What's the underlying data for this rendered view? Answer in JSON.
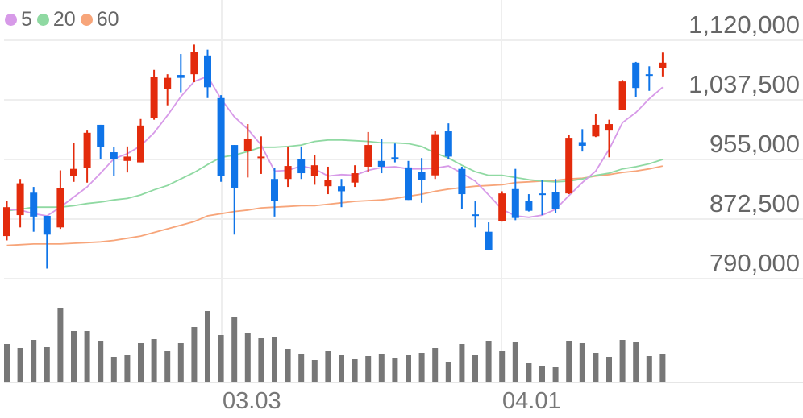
{
  "chart_data": {
    "type": "candlestick",
    "legend": {
      "items": [
        {
          "label": "5",
          "color": "#d79ae8"
        },
        {
          "label": "20",
          "color": "#8fd9a2"
        },
        {
          "label": "60",
          "color": "#f7a57a"
        }
      ],
      "placement": "top-left"
    },
    "y_ticks": [
      "1,120,000",
      "1,037,500",
      "955,000",
      "872,500",
      "790,000"
    ],
    "ylim": [
      790000,
      1120000
    ],
    "x_ticks": [
      {
        "label": "03.03",
        "index": 16
      },
      {
        "label": "04.01",
        "index": 37
      }
    ],
    "grid": true,
    "colors": {
      "up": "#e32b0c",
      "down": "#0f74e8",
      "volume": "#777777",
      "grid": "#eeeeee"
    },
    "candles": [
      {
        "o": 849000,
        "h": 898000,
        "l": 843000,
        "c": 889000
      },
      {
        "o": 878000,
        "h": 928000,
        "l": 861000,
        "c": 922000
      },
      {
        "o": 909000,
        "h": 917000,
        "l": 855000,
        "c": 876000
      },
      {
        "o": 877000,
        "h": 877000,
        "l": 804000,
        "c": 851000
      },
      {
        "o": 861000,
        "h": 940000,
        "l": 859000,
        "c": 915000
      },
      {
        "o": 932000,
        "h": 978000,
        "l": 924000,
        "c": 942000
      },
      {
        "o": 943000,
        "h": 995000,
        "l": 923000,
        "c": 992000
      },
      {
        "o": 1003000,
        "h": 1003000,
        "l": 956000,
        "c": 972000
      },
      {
        "o": 965000,
        "h": 972000,
        "l": 932000,
        "c": 955000
      },
      {
        "o": 953000,
        "h": 973000,
        "l": 937000,
        "c": 959000
      },
      {
        "o": 951000,
        "h": 1011000,
        "l": 951000,
        "c": 1002000
      },
      {
        "o": 1012000,
        "h": 1079000,
        "l": 1010000,
        "c": 1069000
      },
      {
        "o": 1053000,
        "h": 1073000,
        "l": 1030000,
        "c": 1068000
      },
      {
        "o": 1072000,
        "h": 1101000,
        "l": 1048000,
        "c": 1068000
      },
      {
        "o": 1073000,
        "h": 1114000,
        "l": 1062000,
        "c": 1104000
      },
      {
        "o": 1099000,
        "h": 1107000,
        "l": 1040000,
        "c": 1055000
      },
      {
        "o": 1040000,
        "h": 1044000,
        "l": 924000,
        "c": 932000
      },
      {
        "o": 975000,
        "h": 975000,
        "l": 851000,
        "c": 916000
      },
      {
        "o": 967000,
        "h": 1004000,
        "l": 930000,
        "c": 984000
      },
      {
        "o": 958000,
        "h": 987000,
        "l": 935000,
        "c": 959000
      },
      {
        "o": 928000,
        "h": 943000,
        "l": 876000,
        "c": 898000
      },
      {
        "o": 928000,
        "h": 973000,
        "l": 917000,
        "c": 946000
      },
      {
        "o": 956000,
        "h": 973000,
        "l": 928000,
        "c": 936000
      },
      {
        "o": 932000,
        "h": 961000,
        "l": 920000,
        "c": 947000
      },
      {
        "o": 918000,
        "h": 945000,
        "l": 907000,
        "c": 927000
      },
      {
        "o": 918000,
        "h": 928000,
        "l": 889000,
        "c": 911000
      },
      {
        "o": 923000,
        "h": 947000,
        "l": 917000,
        "c": 936000
      },
      {
        "o": 945000,
        "h": 993000,
        "l": 938000,
        "c": 975000
      },
      {
        "o": 953000,
        "h": 984000,
        "l": 936000,
        "c": 945000
      },
      {
        "o": 958000,
        "h": 977000,
        "l": 951000,
        "c": 956000
      },
      {
        "o": 944000,
        "h": 953000,
        "l": 899000,
        "c": 899000
      },
      {
        "o": 938000,
        "h": 957000,
        "l": 895000,
        "c": 927000
      },
      {
        "o": 933000,
        "h": 994000,
        "l": 928000,
        "c": 990000
      },
      {
        "o": 994000,
        "h": 1005000,
        "l": 956000,
        "c": 959000
      },
      {
        "o": 942000,
        "h": 945000,
        "l": 886000,
        "c": 907000
      },
      {
        "o": 879000,
        "h": 897000,
        "l": 861000,
        "c": 877000
      },
      {
        "o": 855000,
        "h": 868000,
        "l": 829000,
        "c": 830000
      },
      {
        "o": 870000,
        "h": 911000,
        "l": 869000,
        "c": 908000
      },
      {
        "o": 914000,
        "h": 942000,
        "l": 871000,
        "c": 874000
      },
      {
        "o": 898000,
        "h": 907000,
        "l": 883000,
        "c": 884000
      },
      {
        "o": 908000,
        "h": 927000,
        "l": 878000,
        "c": 906000
      },
      {
        "o": 910000,
        "h": 928000,
        "l": 881000,
        "c": 886000
      },
      {
        "o": 908000,
        "h": 989000,
        "l": 907000,
        "c": 985000
      },
      {
        "o": 979000,
        "h": 997000,
        "l": 966000,
        "c": 974000
      },
      {
        "o": 987000,
        "h": 1018000,
        "l": 986000,
        "c": 1003000
      },
      {
        "o": 995000,
        "h": 1010000,
        "l": 958000,
        "c": 1004000
      },
      {
        "o": 1023000,
        "h": 1065000,
        "l": 1023000,
        "c": 1063000
      },
      {
        "o": 1089000,
        "h": 1090000,
        "l": 1041000,
        "c": 1054000
      },
      {
        "o": 1073000,
        "h": 1084000,
        "l": 1050000,
        "c": 1072000
      },
      {
        "o": 1082000,
        "h": 1103000,
        "l": 1070000,
        "c": 1089000
      }
    ],
    "series": [
      {
        "name": "5",
        "values": [
          886000,
          885000,
          880000,
          877000,
          889000,
          903000,
          917000,
          936000,
          956000,
          963000,
          974000,
          992000,
          1016000,
          1042000,
          1063000,
          1070000,
          1039000,
          1014000,
          997000,
          975000,
          939000,
          940000,
          946000,
          942000,
          932000,
          934000,
          933000,
          940000,
          944000,
          945000,
          942000,
          942000,
          943000,
          946000,
          936000,
          925000,
          906000,
          886000,
          877000,
          875000,
          878000,
          886000,
          905000,
          923000,
          939000,
          969000,
          1006000,
          1020000,
          1039000,
          1055000
        ]
      },
      {
        "name": "20",
        "values": [
          884000,
          886000,
          889000,
          889000,
          889000,
          891000,
          894000,
          896000,
          899000,
          901000,
          906000,
          913000,
          919000,
          928000,
          937000,
          948000,
          958000,
          961000,
          966000,
          972000,
          972000,
          973000,
          975000,
          980000,
          982000,
          982000,
          981000,
          980000,
          978000,
          978000,
          977000,
          973000,
          964000,
          957000,
          947000,
          938000,
          933000,
          933000,
          930000,
          927000,
          925000,
          924000,
          925000,
          928000,
          933000,
          936000,
          942000,
          945000,
          949000,
          955000
        ]
      },
      {
        "name": "60",
        "values": [
          836000,
          837000,
          838000,
          838000,
          838000,
          839000,
          840000,
          841000,
          843000,
          846000,
          849000,
          854000,
          859000,
          864000,
          869000,
          877000,
          880000,
          883000,
          885000,
          888000,
          889000,
          890000,
          891000,
          891000,
          893000,
          895000,
          897000,
          898000,
          899000,
          901000,
          904000,
          907000,
          911000,
          914000,
          916000,
          918000,
          919000,
          920000,
          923000,
          924000,
          925000,
          926000,
          928000,
          929000,
          932000,
          934000,
          937000,
          939000,
          942000,
          946000
        ]
      }
    ],
    "volume_relative": [
      47,
      42,
      52,
      43,
      92,
      63,
      63,
      51,
      31,
      33,
      48,
      53,
      38,
      48,
      68,
      88,
      58,
      81,
      60,
      54,
      55,
      41,
      34,
      27,
      38,
      33,
      28,
      32,
      34,
      30,
      33,
      36,
      42,
      24,
      47,
      33,
      51,
      38,
      49,
      23,
      20,
      18,
      51,
      48,
      36,
      31,
      52,
      49,
      32,
      34
    ]
  }
}
